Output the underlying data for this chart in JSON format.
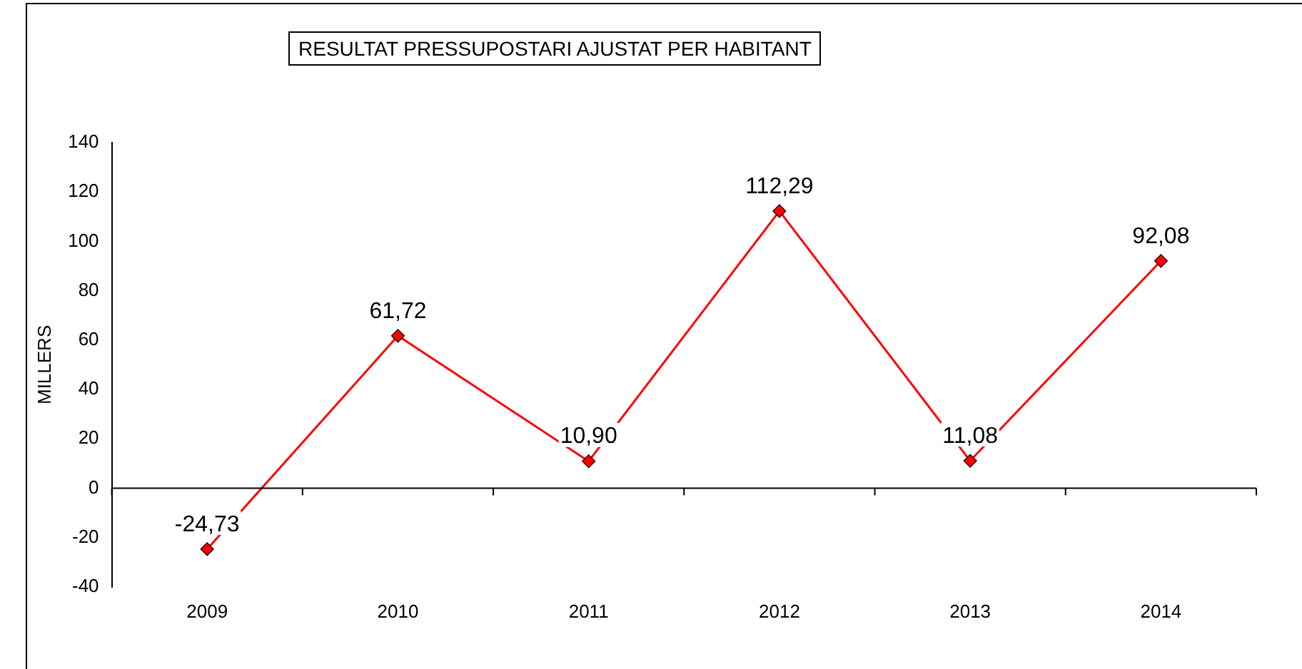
{
  "chart_data": {
    "type": "line",
    "title": "RESULTAT PRESSUPOSTARI AJUSTAT PER HABITANT",
    "ylabel": "MILLERS",
    "categories": [
      "2009",
      "2010",
      "2011",
      "2012",
      "2013",
      "2014"
    ],
    "series": [
      {
        "color": "#ff0000",
        "values": [
          -24.73,
          61.72,
          10.9,
          112.29,
          11.08,
          92.08
        ],
        "value_labels": [
          "-24,73",
          "61,72",
          "10,90",
          "112,29",
          "11,08",
          "92,08"
        ]
      }
    ],
    "ylim": [
      -40,
      140
    ],
    "yticks": [
      -40,
      -20,
      0,
      20,
      40,
      60,
      80,
      100,
      120,
      140
    ],
    "ref_lines": [
      {
        "axis": "y",
        "value": 0,
        "color": "#000000"
      }
    ],
    "grid": false,
    "legend": false,
    "marker": "diamond",
    "line_style": "solid"
  }
}
